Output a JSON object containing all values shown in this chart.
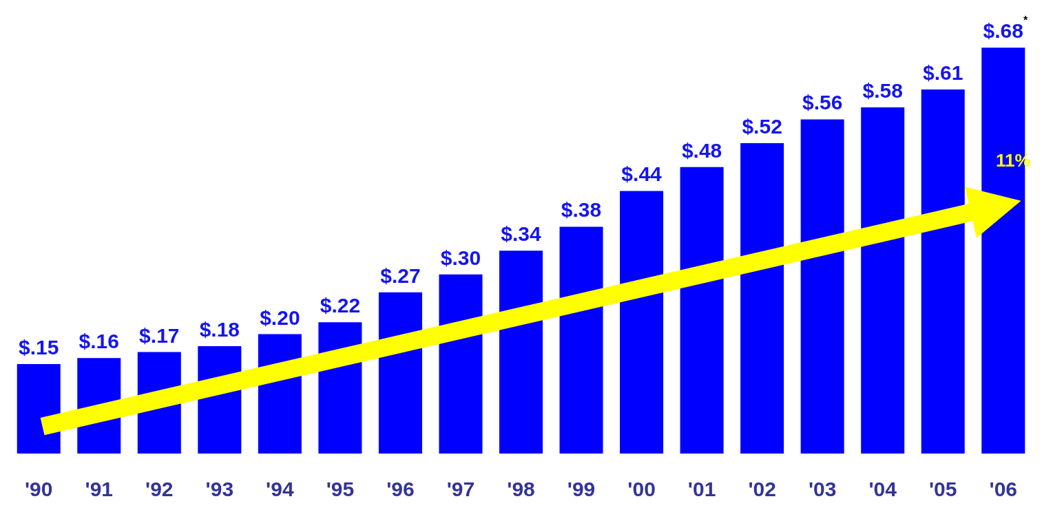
{
  "chart_data": {
    "type": "bar",
    "categories": [
      "'90",
      "'91",
      "'92",
      "'93",
      "'94",
      "'95",
      "'96",
      "'97",
      "'98",
      "'99",
      "'00",
      "'01",
      "'02",
      "'03",
      "'04",
      "'05",
      "'06"
    ],
    "values": [
      0.15,
      0.16,
      0.17,
      0.18,
      0.2,
      0.22,
      0.27,
      0.3,
      0.34,
      0.38,
      0.44,
      0.48,
      0.52,
      0.56,
      0.58,
      0.61,
      0.68
    ],
    "value_labels": [
      "$.15",
      "$.16",
      "$.17",
      "$.18",
      "$.20",
      "$.22",
      "$.27",
      "$.30",
      "$.34",
      "$.38",
      "$.44",
      "$.48",
      "$.52",
      "$.56",
      "$.58",
      "$.61",
      "$.68$^{*}$"
    ],
    "color": "#0000ff",
    "tick_labels": "x",
    "grid": false,
    "legend": false,
    "annotations": [
      "11%"
    ]
  }
}
